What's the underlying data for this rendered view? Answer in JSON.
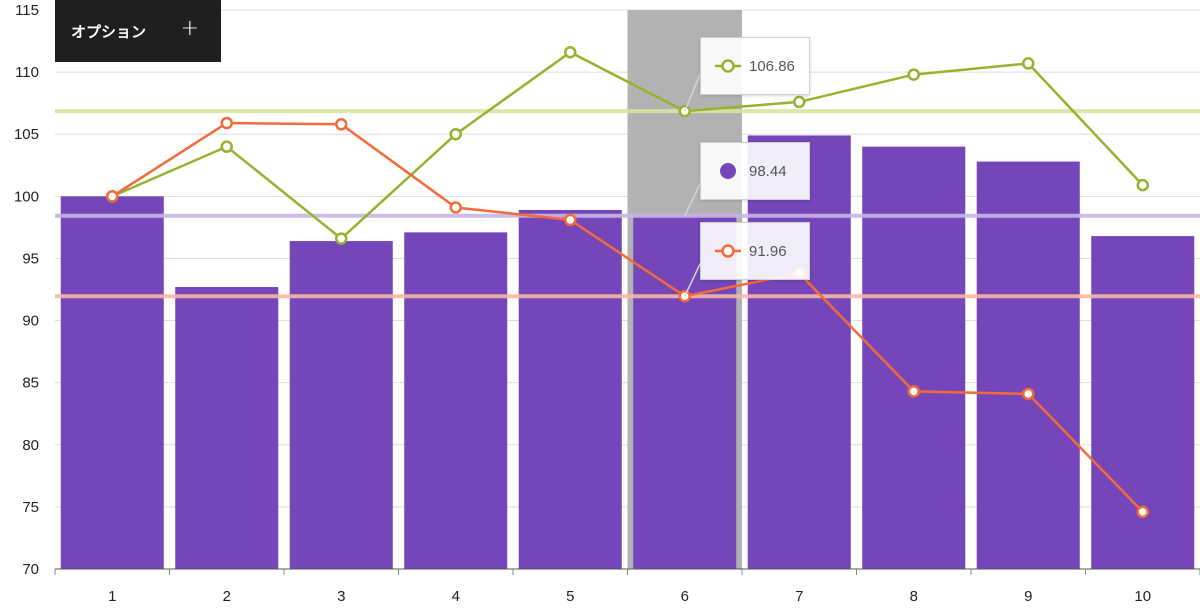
{
  "options_panel": {
    "label": "オプション",
    "add_icon": "plus-icon",
    "add_symbol": "+"
  },
  "colors": {
    "bars": "#7446B9",
    "green": "#95B22E",
    "orange": "#F46A3A",
    "green_line": "#D7E6A1",
    "purple_line": "#C7B6E6",
    "orange_line": "#F7B9A4",
    "highlight": "#B2B2B2"
  },
  "chart_data": {
    "type": "bar",
    "categories": [
      "1",
      "2",
      "3",
      "4",
      "5",
      "6",
      "7",
      "8",
      "9",
      "10"
    ],
    "series": [
      {
        "kind": "bar",
        "values": [
          100,
          92.7,
          96.4,
          97.1,
          98.9,
          98.44,
          104.9,
          104.0,
          102.8,
          96.8
        ]
      },
      {
        "kind": "line",
        "values": [
          100,
          104.0,
          96.6,
          105.0,
          111.6,
          106.86,
          107.6,
          109.8,
          110.7,
          100.9
        ]
      },
      {
        "kind": "line",
        "values": [
          100,
          105.9,
          105.8,
          99.1,
          98.1,
          91.96,
          93.8,
          84.3,
          84.1,
          74.6
        ]
      }
    ],
    "ylim": [
      70,
      115
    ],
    "yticks": [
      "70",
      "75",
      "80",
      "85",
      "90",
      "95",
      "100",
      "105",
      "110",
      "115"
    ],
    "highlighted_category": "6",
    "reference_lines": [
      106.86,
      98.44,
      91.96
    ],
    "tooltips": {
      "green": "106.86",
      "bars": "98.44",
      "orange": "91.96"
    },
    "grid": true
  }
}
